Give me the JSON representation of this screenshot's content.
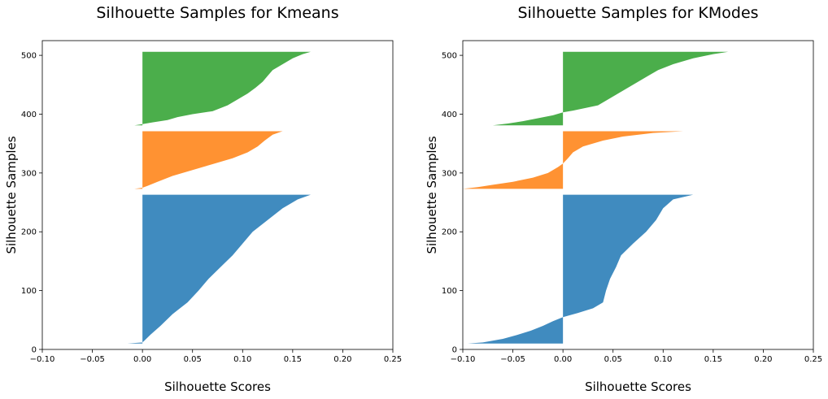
{
  "chart_data": [
    {
      "type": "area",
      "title": "Silhouette Samples for Kmeans",
      "xlabel": "Silhouette Scores",
      "ylabel": "Silhouette Samples",
      "xlim": [
        -0.1,
        0.25
      ],
      "ylim": [
        0,
        525
      ],
      "xticks": [
        "−0.10",
        "−0.05",
        "0.00",
        "0.05",
        "0.10",
        "0.15",
        "0.20",
        "0.25"
      ],
      "yticks": [
        "0",
        "100",
        "200",
        "300",
        "400",
        "500"
      ],
      "xtick_values": [
        -0.1,
        -0.05,
        0.0,
        0.05,
        0.1,
        0.15,
        0.2,
        0.25
      ],
      "ytick_values": [
        0,
        100,
        200,
        300,
        400,
        500
      ],
      "grid": false,
      "series": [
        {
          "color": "#1f77b4",
          "y": [
            10,
            12,
            15,
            25,
            40,
            60,
            80,
            100,
            120,
            140,
            160,
            180,
            200,
            220,
            240,
            255,
            263
          ],
          "x": [
            -0.015,
            0.0,
            0.002,
            0.008,
            0.018,
            0.03,
            0.045,
            0.056,
            0.066,
            0.078,
            0.09,
            0.1,
            0.11,
            0.125,
            0.14,
            0.155,
            0.168
          ]
        },
        {
          "color": "#ff7f0e",
          "y": [
            273,
            275,
            278,
            285,
            295,
            305,
            315,
            325,
            335,
            345,
            355,
            365,
            370,
            371
          ],
          "x": [
            -0.008,
            0.0,
            0.005,
            0.015,
            0.03,
            0.05,
            0.07,
            0.09,
            0.105,
            0.115,
            0.122,
            0.13,
            0.138,
            0.14
          ]
        },
        {
          "color": "#2ca02c",
          "y": [
            381,
            383,
            386,
            390,
            395,
            400,
            405,
            415,
            425,
            435,
            445,
            455,
            465,
            475,
            485,
            495,
            502,
            506
          ],
          "x": [
            -0.008,
            0.0,
            0.01,
            0.025,
            0.035,
            0.05,
            0.07,
            0.085,
            0.095,
            0.105,
            0.113,
            0.12,
            0.125,
            0.13,
            0.14,
            0.15,
            0.16,
            0.168
          ]
        }
      ]
    },
    {
      "type": "area",
      "title": "Silhouette Samples for KModes",
      "xlabel": "Silhouette Scores",
      "ylabel": "Silhouette Samples",
      "xlim": [
        -0.1,
        0.25
      ],
      "ylim": [
        0,
        525
      ],
      "xticks": [
        "−0.10",
        "−0.05",
        "0.00",
        "0.05",
        "0.10",
        "0.15",
        "0.20",
        "0.25"
      ],
      "yticks": [
        "0",
        "100",
        "200",
        "300",
        "400",
        "500"
      ],
      "xtick_values": [
        -0.1,
        -0.05,
        0.0,
        0.05,
        0.1,
        0.15,
        0.2,
        0.25
      ],
      "ytick_values": [
        0,
        100,
        200,
        300,
        400,
        500
      ],
      "grid": false,
      "series": [
        {
          "color": "#1f77b4",
          "y": [
            10,
            12,
            18,
            25,
            32,
            40,
            48,
            55,
            62,
            70,
            80,
            100,
            120,
            140,
            160,
            180,
            200,
            220,
            240,
            255,
            263
          ],
          "x": [
            -0.095,
            -0.08,
            -0.06,
            -0.045,
            -0.032,
            -0.02,
            -0.01,
            0.0,
            0.015,
            0.03,
            0.04,
            0.043,
            0.047,
            0.053,
            0.058,
            0.07,
            0.083,
            0.093,
            0.1,
            0.11,
            0.13
          ]
        },
        {
          "color": "#ff7f0e",
          "y": [
            273,
            276,
            280,
            285,
            292,
            300,
            310,
            316,
            325,
            335,
            345,
            355,
            362,
            368,
            371
          ],
          "x": [
            -0.1,
            -0.085,
            -0.07,
            -0.05,
            -0.03,
            -0.015,
            -0.005,
            0.0,
            0.005,
            0.01,
            0.02,
            0.04,
            0.06,
            0.09,
            0.12
          ]
        },
        {
          "color": "#2ca02c",
          "y": [
            381,
            384,
            388,
            393,
            398,
            403,
            406,
            415,
            425,
            435,
            445,
            455,
            465,
            475,
            485,
            495,
            502,
            506
          ],
          "x": [
            -0.07,
            -0.055,
            -0.04,
            -0.025,
            -0.01,
            0.0,
            0.01,
            0.035,
            0.045,
            0.055,
            0.065,
            0.075,
            0.085,
            0.095,
            0.11,
            0.13,
            0.15,
            0.165
          ]
        }
      ]
    }
  ]
}
